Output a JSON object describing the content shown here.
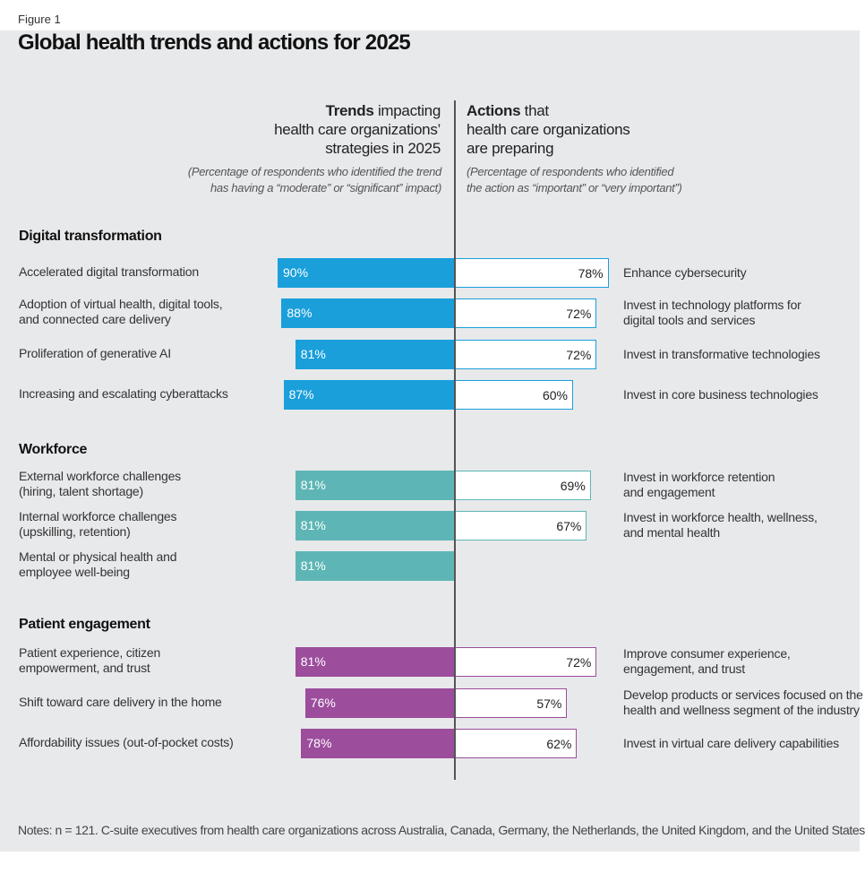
{
  "figure_label": "Figure 1",
  "title": "Global health  trends and actions for 2025",
  "left_header": {
    "bold": "Trends",
    "rest1": " impacting",
    "line2": "health care organizations’",
    "line3": "strategies in 2025",
    "sub1": "(Percentage of respondents who identified the trend",
    "sub2": "has having a  “moderate” or “significant” impact)"
  },
  "right_header": {
    "bold": "Actions",
    "rest1": " that",
    "line2": "health care organizations",
    "line3": "are preparing",
    "sub1": "(Percentage of respondents who identified",
    "sub2": "the action as “important” or “very important”)"
  },
  "notes": "Notes: n = 121. C-suite executives from health care organizations across Australia, Canada, Germany, the Netherlands, the United Kingdom, and the United States",
  "chart_data": {
    "type": "bar",
    "orientation": "horizontal-diverging",
    "unit": "%",
    "groups": [
      {
        "name": "Digital transformation",
        "color": "#1a9fdb",
        "rows": [
          {
            "trend": "Accelerated digital transformation",
            "trend_value": 90,
            "action": "Enhance cybersecurity",
            "action_value": 78
          },
          {
            "trend": "Adoption of virtual health, digital tools,\nand connected care delivery",
            "trend_value": 88,
            "action": "Invest in technology platforms for\ndigital tools and services",
            "action_value": 72
          },
          {
            "trend": "Proliferation of generative AI",
            "trend_value": 81,
            "action": "Invest in transformative technologies",
            "action_value": 72
          },
          {
            "trend": "Increasing and escalating cyberattacks",
            "trend_value": 87,
            "action": "Invest in core business technologies",
            "action_value": 60
          }
        ]
      },
      {
        "name": "Workforce",
        "color": "#5db6b5",
        "rows": [
          {
            "trend": "External workforce challenges\n(hiring, talent shortage)",
            "trend_value": 81,
            "action": "Invest in workforce retention\nand engagement",
            "action_value": 69
          },
          {
            "trend": "Internal workforce challenges\n(upskilling, retention)",
            "trend_value": 81,
            "action": "Invest in workforce health, wellness,\nand mental health",
            "action_value": 67
          },
          {
            "trend": "Mental or physical health and\nemployee well-being",
            "trend_value": 81,
            "action": null,
            "action_value": null
          }
        ]
      },
      {
        "name": "Patient engagement",
        "color": "#9c4d9c",
        "rows": [
          {
            "trend": "Patient experience, citizen\nempowerment, and trust",
            "trend_value": 81,
            "action": "Improve consumer experience,\nengagement, and trust",
            "action_value": 72
          },
          {
            "trend": "Shift toward care delivery in the home",
            "trend_value": 76,
            "action": "Develop products or services focused on the\nhealth and wellness segment of the industry",
            "action_value": 57
          },
          {
            "trend": "Affordability issues (out-of-pocket costs)",
            "trend_value": 78,
            "action": "Invest in virtual care delivery capabilities",
            "action_value": 62
          }
        ]
      }
    ]
  }
}
